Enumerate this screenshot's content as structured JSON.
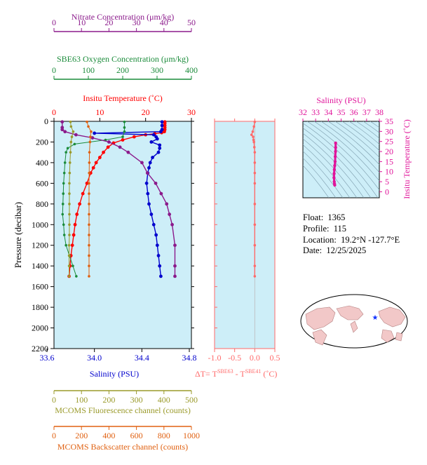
{
  "info": {
    "float_label": "Float:",
    "float_value": "1365",
    "profile_label": "Profile:",
    "profile_value": "115",
    "location_label": "Location:",
    "location_value": "19.2°N  -127.7°E",
    "date_label": "Date:",
    "date_value": "12/25/2025"
  },
  "colors": {
    "nitrate": "#8b1a8b",
    "oxygen": "#1a8b3a",
    "temperature": "#ff0000",
    "salinity": "#0000cd",
    "fluorescence": "#9a9a2a",
    "backscatter": "#e06010",
    "delta": "#ff6a6a",
    "ts": "#e0149a",
    "panel_bg": "#cdeef8"
  },
  "chart_data": [
    {
      "type": "line",
      "title": "",
      "ylabel": "Pressure (decibar)",
      "ylim": [
        2200,
        0
      ],
      "y_ticks": [
        "0",
        "200",
        "400",
        "600",
        "800",
        "1000",
        "1200",
        "1400",
        "1600",
        "1800",
        "2000",
        "2200"
      ],
      "axes": [
        {
          "key": "nitrate",
          "label": "Nitrate Concentration (μm/kg)",
          "range": [
            0,
            50
          ],
          "ticks": [
            "0",
            "10",
            "20",
            "30",
            "40",
            "50"
          ]
        },
        {
          "key": "oxygen",
          "label": "SBE63 Oxygen Concentration (μm/kg)",
          "range": [
            0,
            400
          ],
          "ticks": [
            "0",
            "100",
            "200",
            "300",
            "400"
          ]
        },
        {
          "key": "temperature",
          "label": "Insitu Temperature (˚C)",
          "range": [
            0,
            30
          ],
          "ticks": [
            "0",
            "10",
            "20",
            "30"
          ]
        },
        {
          "key": "salinity",
          "label": "Salinity (PSU)",
          "range": [
            33.6,
            34.8
          ],
          "ticks": [
            "33.6",
            "34.0",
            "34.4",
            "34.8"
          ]
        },
        {
          "key": "fluorescence",
          "label": "MCOMS Fluorescence channel (counts)",
          "range": [
            0,
            500
          ],
          "ticks": [
            "0",
            "100",
            "200",
            "300",
            "400",
            "500"
          ]
        },
        {
          "key": "backscatter",
          "label": "MCOMS Backscatter channel (counts)",
          "range": [
            0,
            1000
          ],
          "ticks": [
            "0",
            "200",
            "400",
            "600",
            "800",
            "1000"
          ]
        }
      ],
      "series": [
        {
          "key": "temperature",
          "axis": "temperature",
          "pressure": [
            5,
            20,
            40,
            60,
            80,
            100,
            110,
            120,
            130,
            150,
            180,
            210,
            250,
            300,
            350,
            400,
            450,
            500,
            600,
            700,
            800,
            900,
            1000,
            1100,
            1200,
            1300,
            1400,
            1500
          ],
          "values": [
            24.2,
            24.2,
            24.2,
            24.2,
            24.2,
            24.1,
            23.5,
            22,
            20,
            17.5,
            15,
            13,
            11.8,
            10.8,
            10,
            9.2,
            8.6,
            8,
            7.2,
            6.3,
            5.6,
            5.0,
            4.6,
            4.3,
            4.0,
            3.7,
            3.5,
            3.3
          ]
        },
        {
          "key": "salinity",
          "axis": "salinity",
          "pressure": [
            5,
            40,
            80,
            100,
            115,
            130,
            150,
            170,
            200,
            230,
            260,
            300,
            350,
            400,
            450,
            500,
            600,
            700,
            800,
            900,
            1000,
            1100,
            1200,
            1300,
            1400,
            1500
          ],
          "values": [
            34.57,
            34.57,
            34.57,
            34.56,
            34.0,
            34.5,
            34.52,
            34.53,
            34.48,
            34.55,
            34.55,
            34.54,
            34.49,
            34.47,
            34.46,
            34.45,
            34.44,
            34.45,
            34.46,
            34.48,
            34.5,
            34.52,
            34.53,
            34.54,
            34.55,
            34.56
          ]
        },
        {
          "key": "oxygen",
          "axis": "oxygen",
          "pressure": [
            5,
            60,
            100,
            150,
            180,
            220,
            260,
            300,
            400,
            500,
            600,
            700,
            800,
            900,
            1000,
            1100,
            1200,
            1300,
            1400,
            1500
          ],
          "values": [
            205,
            205,
            205,
            200,
            150,
            60,
            40,
            35,
            32,
            30,
            28,
            27,
            26,
            25,
            28,
            30,
            35,
            45,
            55,
            65
          ]
        },
        {
          "key": "nitrate",
          "axis": "nitrate",
          "pressure": [
            5,
            60,
            80,
            100,
            130,
            160,
            200,
            250,
            300,
            400,
            500,
            600,
            700,
            800,
            900,
            1000,
            1200,
            1400,
            1500
          ],
          "values": [
            3,
            3,
            3,
            4,
            8,
            14,
            20,
            24,
            27,
            32,
            34,
            37,
            39,
            41,
            42,
            43,
            44,
            44,
            44
          ]
        },
        {
          "key": "fluorescence",
          "axis": "fluorescence",
          "pressure": [
            5,
            50,
            100,
            150,
            200,
            300,
            400,
            500,
            600,
            700,
            800,
            900,
            1000,
            1100,
            1200,
            1300,
            1400,
            1500
          ],
          "values": [
            60,
            62,
            70,
            65,
            62,
            60,
            58,
            57,
            56,
            56,
            56,
            56,
            56,
            56,
            55,
            55,
            55,
            55
          ]
        },
        {
          "key": "backscatter",
          "axis": "backscatter",
          "pressure": [
            5,
            50,
            100,
            150,
            200,
            300,
            400,
            500,
            600,
            700,
            800,
            900,
            1000,
            1100,
            1200,
            1300,
            1400,
            1500
          ],
          "values": [
            240,
            250,
            270,
            265,
            262,
            258,
            257,
            256,
            255,
            255,
            255,
            255,
            255,
            255,
            255,
            255,
            255,
            255
          ]
        }
      ]
    },
    {
      "type": "line",
      "title": "",
      "xlabel": "ΔT= Tˢᴮᴱ⁶³ - Tˢᴮᴱ⁴¹ (˚C)",
      "xlabel_main": "ΔT= T",
      "xlabel_sup1": "SBE63",
      "xlabel_mid": " - T",
      "xlabel_sup2": "SBE41",
      "xlabel_end": " (˚C)",
      "xlim": [
        -1.0,
        0.5
      ],
      "x_ticks": [
        "-1.0",
        "-0.5",
        "0.0",
        "0.5"
      ],
      "series": [
        {
          "name": "",
          "pressure": [
            5,
            50,
            100,
            130,
            150,
            180,
            200,
            250,
            300,
            400,
            500,
            600,
            800,
            1000,
            1200,
            1400,
            1500
          ],
          "values": [
            0.0,
            -0.02,
            -0.05,
            -0.08,
            -0.04,
            -0.03,
            -0.02,
            -0.01,
            0.0,
            0.0,
            0.0,
            0.0,
            0.0,
            0.0,
            0.0,
            0.0,
            0.0
          ]
        }
      ]
    },
    {
      "type": "line",
      "title": "",
      "xlabel": "Salinity (PSU)",
      "ylabel": "Insitu Temperature (˚C)",
      "xlim": [
        32,
        38
      ],
      "ylim": [
        -3,
        35
      ],
      "x_ticks": [
        "32",
        "33",
        "34",
        "35",
        "36",
        "37",
        "38"
      ],
      "y_ticks": [
        "0",
        "5",
        "10",
        "15",
        "20",
        "25",
        "30",
        "35"
      ],
      "series": [
        {
          "name": "",
          "x": [
            34.5,
            34.48,
            34.46,
            34.44,
            34.45,
            34.47,
            34.5,
            34.53,
            34.54,
            34.56,
            34.57,
            34.57
          ],
          "y": [
            3.3,
            4,
            5,
            7,
            9,
            11,
            13,
            15,
            17.5,
            20,
            22,
            24.2
          ]
        }
      ]
    }
  ]
}
